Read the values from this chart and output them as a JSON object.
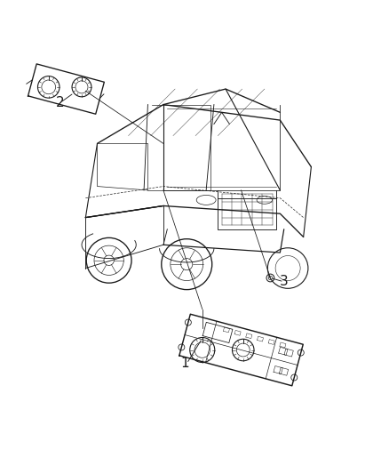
{
  "title": "",
  "background_color": "#ffffff",
  "figure_width": 4.38,
  "figure_height": 5.33,
  "dpi": 100,
  "labels": {
    "1": [
      0.475,
      0.175
    ],
    "2": [
      0.155,
      0.845
    ],
    "3": [
      0.73,
      0.385
    ]
  },
  "label_fontsize": 11,
  "line_color": "#1a1a1a",
  "line_width": 0.8,
  "vehicle_color": "#222222",
  "component_color": "#333333"
}
